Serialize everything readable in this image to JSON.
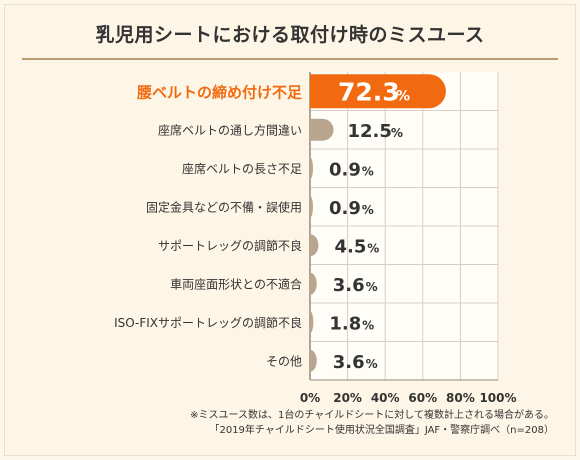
{
  "title": "乳児用シートにおける取付け時のミスユース",
  "chart_data": {
    "type": "bar",
    "orientation": "horizontal",
    "categories": [
      "腰ベルトの締め付け不足",
      "座席ベルトの通し方間違い",
      "座席ベルトの長さ不足",
      "固定金具などの不備・誤使用",
      "サポートレッグの調節不良",
      "車両座面形状との不適合",
      "ISO-FIXサポートレッグの調節不良",
      "その他"
    ],
    "values": [
      72.3,
      12.5,
      0.9,
      0.9,
      4.5,
      3.6,
      1.8,
      3.6
    ],
    "value_labels": [
      "72.3",
      "12.5",
      "0.9",
      "0.9",
      "4.5",
      "3.6",
      "1.8",
      "3.6"
    ],
    "unit": "%",
    "xlim": [
      0,
      100
    ],
    "xticks": [
      "0%",
      "20%",
      "40%",
      "60%",
      "80%",
      "100%"
    ],
    "highlight_index": 0,
    "colors": {
      "highlight": "#f26a10",
      "normal": "#b9a48e",
      "grid": "#d8cfc2",
      "label_highlight": "#f26a10",
      "text": "#333333"
    },
    "grid": true
  },
  "footnote": {
    "line1": "※ミスユース数は、1台のチャイルドシートに対して複数計上される場合がある。",
    "line2": "「2019年チャイルドシート使用状況全国調査」JAF・警察庁調べ（n=208）"
  }
}
